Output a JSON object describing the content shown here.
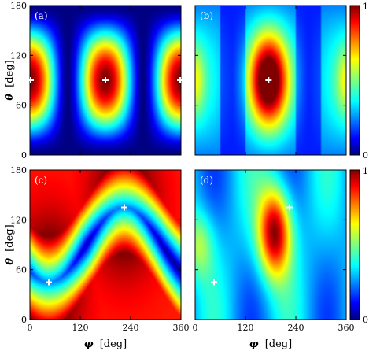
{
  "chart_data": {
    "type": "heatmap",
    "x_label_symbol": "φ",
    "x_label_unit": "[deg]",
    "y_label_symbol": "θ",
    "y_label_unit": "[deg]",
    "xlim": [
      0,
      360
    ],
    "ylim": [
      0,
      180
    ],
    "x_ticks": [
      "0",
      "120",
      "240",
      "360"
    ],
    "y_ticks": [
      "0",
      "60",
      "120",
      "180"
    ],
    "colorbar": {
      "min": 0,
      "max": 1,
      "tick_labels": [
        "0",
        "1"
      ],
      "colormap": "jet"
    },
    "panels": [
      {
        "label": "(a)",
        "markers": [
          {
            "phi": 0,
            "theta": 90
          },
          {
            "phi": 180,
            "theta": 90
          },
          {
            "phi": 360,
            "theta": 90
          }
        ]
      },
      {
        "label": "(b)",
        "markers": [
          {
            "phi": 175,
            "theta": 90
          }
        ]
      },
      {
        "label": "(c)",
        "markers": [
          {
            "phi": 45,
            "theta": 45
          },
          {
            "phi": 225,
            "theta": 135
          }
        ]
      },
      {
        "label": "(d)",
        "markers": [
          {
            "phi": 45,
            "theta": 45
          },
          {
            "phi": 225,
            "theta": 135
          }
        ]
      }
    ]
  },
  "colors": {
    "marker": "#ffffff",
    "frame": "#000000"
  }
}
